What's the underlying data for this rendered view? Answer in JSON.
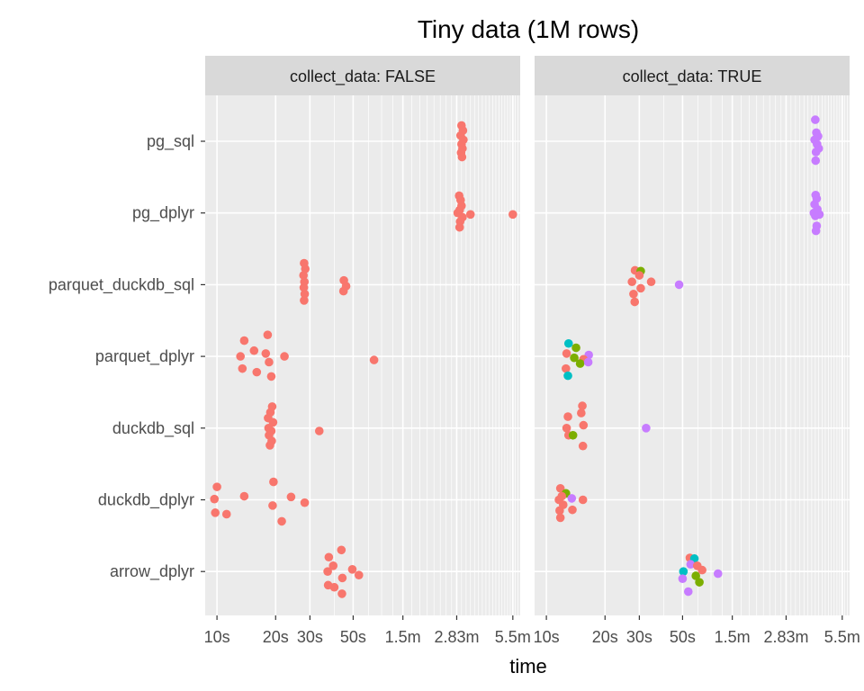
{
  "chart_data": {
    "type": "scatter",
    "title": "Tiny data (1M rows)",
    "xlabel": "time",
    "ylabel": "",
    "x_scale": "log",
    "xlim_seconds": [
      8.7,
      360
    ],
    "x_ticks": [
      {
        "label": "10s",
        "value": 10
      },
      {
        "label": "20s",
        "value": 20
      },
      {
        "label": "30s",
        "value": 30
      },
      {
        "label": "50s",
        "value": 50
      },
      {
        "label": "1.5m",
        "value": 90
      },
      {
        "label": "2.83m",
        "value": 170
      },
      {
        "label": "5.5m",
        "value": 330
      }
    ],
    "categories": [
      "pg_sql",
      "pg_dplyr",
      "parquet_duckdb_sql",
      "parquet_dplyr",
      "duckdb_sql",
      "duckdb_dplyr",
      "arrow_dplyr"
    ],
    "grid": true,
    "legend": "none",
    "colors": {
      "red": "#F8766D",
      "green": "#7CAE00",
      "teal": "#00BFC4",
      "purple": "#C77CFF",
      "panel_bg": "#EBEBEB",
      "strip_bg": "#D9D9D9",
      "grid": "#FFFFFF"
    },
    "panels": [
      {
        "strip": "collect_data: FALSE",
        "points": [
          {
            "cat": "pg_sql",
            "c": "red",
            "x": 180,
            "dy": -0.22
          },
          {
            "cat": "pg_sql",
            "c": "red",
            "x": 183,
            "dy": -0.15
          },
          {
            "cat": "pg_sql",
            "c": "red",
            "x": 178,
            "dy": -0.08
          },
          {
            "cat": "pg_sql",
            "c": "red",
            "x": 184,
            "dy": -0.02
          },
          {
            "cat": "pg_sql",
            "c": "red",
            "x": 180,
            "dy": 0.04
          },
          {
            "cat": "pg_sql",
            "c": "red",
            "x": 182,
            "dy": 0.1
          },
          {
            "cat": "pg_sql",
            "c": "red",
            "x": 179,
            "dy": 0.16
          },
          {
            "cat": "pg_sql",
            "c": "red",
            "x": 181,
            "dy": 0.22
          },
          {
            "cat": "pg_dplyr",
            "c": "red",
            "x": 175,
            "dy": -0.24
          },
          {
            "cat": "pg_dplyr",
            "c": "red",
            "x": 178,
            "dy": -0.18
          },
          {
            "cat": "pg_dplyr",
            "c": "red",
            "x": 180,
            "dy": -0.1
          },
          {
            "cat": "pg_dplyr",
            "c": "red",
            "x": 176,
            "dy": -0.04
          },
          {
            "cat": "pg_dplyr",
            "c": "red",
            "x": 200,
            "dy": 0.02
          },
          {
            "cat": "pg_dplyr",
            "c": "red",
            "x": 182,
            "dy": 0.06
          },
          {
            "cat": "pg_dplyr",
            "c": "red",
            "x": 172,
            "dy": 0.0
          },
          {
            "cat": "pg_dplyr",
            "c": "red",
            "x": 177,
            "dy": 0.12
          },
          {
            "cat": "pg_dplyr",
            "c": "red",
            "x": 176,
            "dy": 0.2
          },
          {
            "cat": "pg_dplyr",
            "c": "red",
            "x": 330,
            "dy": 0.02
          },
          {
            "cat": "parquet_duckdb_sql",
            "c": "red",
            "x": 28.0,
            "dy": -0.3
          },
          {
            "cat": "parquet_duckdb_sql",
            "c": "red",
            "x": 28.4,
            "dy": -0.22
          },
          {
            "cat": "parquet_duckdb_sql",
            "c": "red",
            "x": 27.8,
            "dy": -0.13
          },
          {
            "cat": "parquet_duckdb_sql",
            "c": "red",
            "x": 28.1,
            "dy": -0.04
          },
          {
            "cat": "parquet_duckdb_sql",
            "c": "red",
            "x": 27.9,
            "dy": 0.04
          },
          {
            "cat": "parquet_duckdb_sql",
            "c": "red",
            "x": 28.2,
            "dy": 0.13
          },
          {
            "cat": "parquet_duckdb_sql",
            "c": "red",
            "x": 28.0,
            "dy": 0.22
          },
          {
            "cat": "parquet_duckdb_sql",
            "c": "red",
            "x": 44.8,
            "dy": -0.06
          },
          {
            "cat": "parquet_duckdb_sql",
            "c": "red",
            "x": 46.0,
            "dy": 0.02
          },
          {
            "cat": "parquet_duckdb_sql",
            "c": "red",
            "x": 44.6,
            "dy": 0.09
          },
          {
            "cat": "parquet_dplyr",
            "c": "red",
            "x": 13.8,
            "dy": -0.22
          },
          {
            "cat": "parquet_dplyr",
            "c": "red",
            "x": 18.2,
            "dy": -0.3
          },
          {
            "cat": "parquet_dplyr",
            "c": "red",
            "x": 15.5,
            "dy": -0.08
          },
          {
            "cat": "parquet_dplyr",
            "c": "red",
            "x": 17.8,
            "dy": -0.04
          },
          {
            "cat": "parquet_dplyr",
            "c": "red",
            "x": 22.2,
            "dy": 0.0
          },
          {
            "cat": "parquet_dplyr",
            "c": "red",
            "x": 13.2,
            "dy": 0.0
          },
          {
            "cat": "parquet_dplyr",
            "c": "red",
            "x": 18.5,
            "dy": 0.08
          },
          {
            "cat": "parquet_dplyr",
            "c": "red",
            "x": 13.5,
            "dy": 0.17
          },
          {
            "cat": "parquet_dplyr",
            "c": "red",
            "x": 16.0,
            "dy": 0.22
          },
          {
            "cat": "parquet_dplyr",
            "c": "red",
            "x": 19.0,
            "dy": 0.28
          },
          {
            "cat": "parquet_dplyr",
            "c": "red",
            "x": 64.0,
            "dy": 0.05
          },
          {
            "cat": "duckdb_sql",
            "c": "red",
            "x": 19.2,
            "dy": -0.3
          },
          {
            "cat": "duckdb_sql",
            "c": "red",
            "x": 18.8,
            "dy": -0.22
          },
          {
            "cat": "duckdb_sql",
            "c": "red",
            "x": 18.3,
            "dy": -0.14
          },
          {
            "cat": "duckdb_sql",
            "c": "red",
            "x": 19.4,
            "dy": -0.08
          },
          {
            "cat": "duckdb_sql",
            "c": "red",
            "x": 18.4,
            "dy": 0.0
          },
          {
            "cat": "duckdb_sql",
            "c": "red",
            "x": 19.0,
            "dy": 0.04
          },
          {
            "cat": "duckdb_sql",
            "c": "red",
            "x": 18.5,
            "dy": 0.1
          },
          {
            "cat": "duckdb_sql",
            "c": "red",
            "x": 19.1,
            "dy": 0.18
          },
          {
            "cat": "duckdb_sql",
            "c": "red",
            "x": 18.7,
            "dy": 0.24
          },
          {
            "cat": "duckdb_sql",
            "c": "red",
            "x": 33.5,
            "dy": 0.04
          },
          {
            "cat": "duckdb_dplyr",
            "c": "red",
            "x": 19.5,
            "dy": -0.25
          },
          {
            "cat": "duckdb_dplyr",
            "c": "red",
            "x": 10.0,
            "dy": -0.18
          },
          {
            "cat": "duckdb_dplyr",
            "c": "red",
            "x": 24.0,
            "dy": -0.04
          },
          {
            "cat": "duckdb_dplyr",
            "c": "red",
            "x": 13.8,
            "dy": -0.05
          },
          {
            "cat": "duckdb_dplyr",
            "c": "red",
            "x": 9.7,
            "dy": -0.01
          },
          {
            "cat": "duckdb_dplyr",
            "c": "red",
            "x": 19.3,
            "dy": 0.08
          },
          {
            "cat": "duckdb_dplyr",
            "c": "red",
            "x": 28.2,
            "dy": 0.04
          },
          {
            "cat": "duckdb_dplyr",
            "c": "red",
            "x": 9.8,
            "dy": 0.18
          },
          {
            "cat": "duckdb_dplyr",
            "c": "red",
            "x": 11.2,
            "dy": 0.2
          },
          {
            "cat": "duckdb_dplyr",
            "c": "red",
            "x": 21.5,
            "dy": 0.3
          },
          {
            "cat": "arrow_dplyr",
            "c": "red",
            "x": 43.5,
            "dy": -0.3
          },
          {
            "cat": "arrow_dplyr",
            "c": "red",
            "x": 37.5,
            "dy": -0.2
          },
          {
            "cat": "arrow_dplyr",
            "c": "red",
            "x": 39.5,
            "dy": -0.08
          },
          {
            "cat": "arrow_dplyr",
            "c": "red",
            "x": 49.5,
            "dy": -0.03
          },
          {
            "cat": "arrow_dplyr",
            "c": "red",
            "x": 37.0,
            "dy": 0.0
          },
          {
            "cat": "arrow_dplyr",
            "c": "red",
            "x": 53.5,
            "dy": 0.05
          },
          {
            "cat": "arrow_dplyr",
            "c": "red",
            "x": 44.0,
            "dy": 0.09
          },
          {
            "cat": "arrow_dplyr",
            "c": "red",
            "x": 37.2,
            "dy": 0.19
          },
          {
            "cat": "arrow_dplyr",
            "c": "red",
            "x": 40.0,
            "dy": 0.22
          },
          {
            "cat": "arrow_dplyr",
            "c": "red",
            "x": 43.8,
            "dy": 0.31
          }
        ]
      },
      {
        "strip": "collect_data: TRUE",
        "points": [
          {
            "cat": "pg_sql",
            "c": "purple",
            "x": 240,
            "dy": -0.3
          },
          {
            "cat": "pg_sql",
            "c": "purple",
            "x": 243,
            "dy": -0.12
          },
          {
            "cat": "pg_sql",
            "c": "purple",
            "x": 248,
            "dy": -0.07
          },
          {
            "cat": "pg_sql",
            "c": "purple",
            "x": 238,
            "dy": -0.02
          },
          {
            "cat": "pg_sql",
            "c": "purple",
            "x": 245,
            "dy": 0.04
          },
          {
            "cat": "pg_sql",
            "c": "purple",
            "x": 250,
            "dy": 0.1
          },
          {
            "cat": "pg_sql",
            "c": "purple",
            "x": 242,
            "dy": 0.15
          },
          {
            "cat": "pg_sql",
            "c": "purple",
            "x": 241,
            "dy": 0.27
          },
          {
            "cat": "pg_dplyr",
            "c": "purple",
            "x": 241,
            "dy": -0.25
          },
          {
            "cat": "pg_dplyr",
            "c": "purple",
            "x": 244,
            "dy": -0.2
          },
          {
            "cat": "pg_dplyr",
            "c": "purple",
            "x": 238,
            "dy": -0.12
          },
          {
            "cat": "pg_dplyr",
            "c": "purple",
            "x": 246,
            "dy": -0.05
          },
          {
            "cat": "pg_dplyr",
            "c": "purple",
            "x": 236,
            "dy": 0.0
          },
          {
            "cat": "pg_dplyr",
            "c": "purple",
            "x": 252,
            "dy": 0.02
          },
          {
            "cat": "pg_dplyr",
            "c": "purple",
            "x": 240,
            "dy": 0.04
          },
          {
            "cat": "pg_dplyr",
            "c": "purple",
            "x": 244,
            "dy": 0.18
          },
          {
            "cat": "pg_dplyr",
            "c": "purple",
            "x": 242,
            "dy": 0.25
          },
          {
            "cat": "parquet_duckdb_sql",
            "c": "red",
            "x": 28.5,
            "dy": -0.2
          },
          {
            "cat": "parquet_duckdb_sql",
            "c": "green",
            "x": 30.5,
            "dy": -0.19
          },
          {
            "cat": "parquet_duckdb_sql",
            "c": "red",
            "x": 30.0,
            "dy": -0.13
          },
          {
            "cat": "parquet_duckdb_sql",
            "c": "red",
            "x": 27.5,
            "dy": -0.04
          },
          {
            "cat": "parquet_duckdb_sql",
            "c": "red",
            "x": 34.5,
            "dy": -0.04
          },
          {
            "cat": "parquet_duckdb_sql",
            "c": "purple",
            "x": 48.0,
            "dy": 0.0
          },
          {
            "cat": "parquet_duckdb_sql",
            "c": "red",
            "x": 30.5,
            "dy": 0.05
          },
          {
            "cat": "parquet_duckdb_sql",
            "c": "red",
            "x": 28.0,
            "dy": 0.13
          },
          {
            "cat": "parquet_duckdb_sql",
            "c": "red",
            "x": 28.4,
            "dy": 0.24
          },
          {
            "cat": "parquet_dplyr",
            "c": "teal",
            "x": 13.0,
            "dy": -0.18
          },
          {
            "cat": "parquet_dplyr",
            "c": "green",
            "x": 14.2,
            "dy": -0.12
          },
          {
            "cat": "parquet_dplyr",
            "c": "red",
            "x": 12.7,
            "dy": -0.04
          },
          {
            "cat": "parquet_dplyr",
            "c": "purple",
            "x": 16.5,
            "dy": -0.02
          },
          {
            "cat": "parquet_dplyr",
            "c": "green",
            "x": 13.9,
            "dy": 0.02
          },
          {
            "cat": "parquet_dplyr",
            "c": "red",
            "x": 15.5,
            "dy": 0.04
          },
          {
            "cat": "parquet_dplyr",
            "c": "green",
            "x": 14.9,
            "dy": 0.1
          },
          {
            "cat": "parquet_dplyr",
            "c": "purple",
            "x": 16.4,
            "dy": 0.08
          },
          {
            "cat": "parquet_dplyr",
            "c": "red",
            "x": 12.6,
            "dy": 0.17
          },
          {
            "cat": "parquet_dplyr",
            "c": "teal",
            "x": 12.9,
            "dy": 0.27
          },
          {
            "cat": "duckdb_sql",
            "c": "red",
            "x": 15.3,
            "dy": -0.31
          },
          {
            "cat": "duckdb_sql",
            "c": "red",
            "x": 15.1,
            "dy": -0.21
          },
          {
            "cat": "duckdb_sql",
            "c": "red",
            "x": 12.9,
            "dy": -0.16
          },
          {
            "cat": "duckdb_sql",
            "c": "red",
            "x": 15.5,
            "dy": -0.04
          },
          {
            "cat": "duckdb_sql",
            "c": "red",
            "x": 12.7,
            "dy": 0.0
          },
          {
            "cat": "duckdb_sql",
            "c": "purple",
            "x": 32.5,
            "dy": 0.0
          },
          {
            "cat": "duckdb_sql",
            "c": "red",
            "x": 13.0,
            "dy": 0.1
          },
          {
            "cat": "duckdb_sql",
            "c": "green",
            "x": 13.7,
            "dy": 0.1
          },
          {
            "cat": "duckdb_sql",
            "c": "red",
            "x": 15.4,
            "dy": 0.25
          },
          {
            "cat": "duckdb_dplyr",
            "c": "red",
            "x": 11.8,
            "dy": -0.16
          },
          {
            "cat": "duckdb_dplyr",
            "c": "green",
            "x": 12.6,
            "dy": -0.09
          },
          {
            "cat": "duckdb_dplyr",
            "c": "red",
            "x": 12.0,
            "dy": -0.05
          },
          {
            "cat": "duckdb_dplyr",
            "c": "red",
            "x": 11.6,
            "dy": 0.0
          },
          {
            "cat": "duckdb_dplyr",
            "c": "purple",
            "x": 13.5,
            "dy": -0.02
          },
          {
            "cat": "duckdb_dplyr",
            "c": "red",
            "x": 15.4,
            "dy": 0.0
          },
          {
            "cat": "duckdb_dplyr",
            "c": "red",
            "x": 12.2,
            "dy": 0.07
          },
          {
            "cat": "duckdb_dplyr",
            "c": "red",
            "x": 13.6,
            "dy": 0.14
          },
          {
            "cat": "duckdb_dplyr",
            "c": "red",
            "x": 11.7,
            "dy": 0.15
          },
          {
            "cat": "duckdb_dplyr",
            "c": "red",
            "x": 11.8,
            "dy": 0.25
          },
          {
            "cat": "arrow_dplyr",
            "c": "red",
            "x": 54.5,
            "dy": -0.19
          },
          {
            "cat": "arrow_dplyr",
            "c": "teal",
            "x": 57.5,
            "dy": -0.18
          },
          {
            "cat": "arrow_dplyr",
            "c": "purple",
            "x": 55.0,
            "dy": -0.1
          },
          {
            "cat": "arrow_dplyr",
            "c": "red",
            "x": 59.5,
            "dy": -0.08
          },
          {
            "cat": "arrow_dplyr",
            "c": "red",
            "x": 63.0,
            "dy": -0.02
          },
          {
            "cat": "arrow_dplyr",
            "c": "teal",
            "x": 50.5,
            "dy": 0.0
          },
          {
            "cat": "arrow_dplyr",
            "c": "purple",
            "x": 76.0,
            "dy": 0.03
          },
          {
            "cat": "arrow_dplyr",
            "c": "green",
            "x": 58.5,
            "dy": 0.06
          },
          {
            "cat": "arrow_dplyr",
            "c": "purple",
            "x": 50.0,
            "dy": 0.1
          },
          {
            "cat": "arrow_dplyr",
            "c": "green",
            "x": 61.0,
            "dy": 0.15
          },
          {
            "cat": "arrow_dplyr",
            "c": "purple",
            "x": 53.5,
            "dy": 0.28
          }
        ]
      }
    ]
  }
}
